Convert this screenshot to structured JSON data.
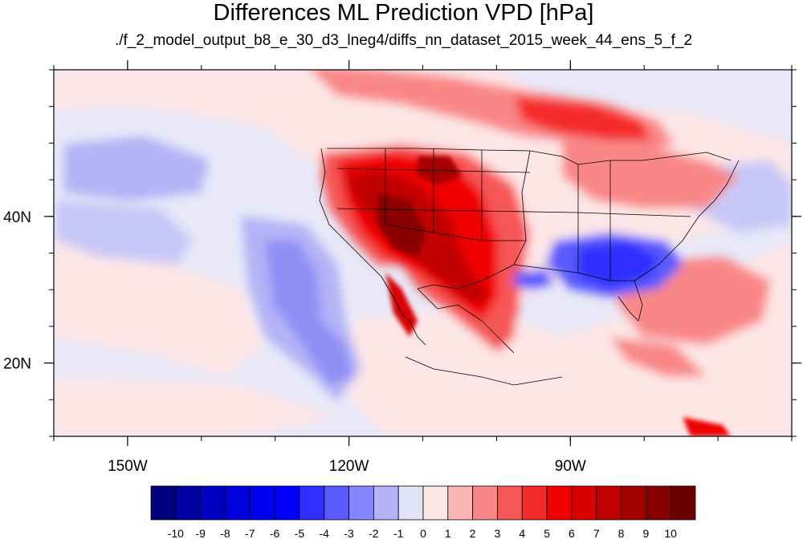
{
  "title": "Differences ML Prediction VPD [hPa]",
  "subtitle": "./f_2_model_output_b8_e_30_d3_lneg4/diffs_nn_dataset_2015_week_44_ens_5_f_2",
  "map": {
    "lon_range": [
      -160,
      -60
    ],
    "lat_range": [
      10,
      60
    ],
    "lon_ticks": [
      {
        "value": -150,
        "label": "150W"
      },
      {
        "value": -120,
        "label": "120W"
      },
      {
        "value": -90,
        "label": "90W"
      }
    ],
    "lat_ticks": [
      {
        "value": 40,
        "label": "40N"
      },
      {
        "value": 20,
        "label": "20N"
      }
    ]
  },
  "colorbar": {
    "labels": [
      "-10",
      "-9",
      "-8",
      "-7",
      "-6",
      "-5",
      "-4",
      "-3",
      "-2",
      "-1",
      "0",
      "1",
      "2",
      "3",
      "4",
      "5",
      "6",
      "7",
      "8",
      "9",
      "10"
    ],
    "colors": [
      "#00007f",
      "#0000a3",
      "#0000c0",
      "#0000db",
      "#0000f0",
      "#0000ff",
      "#2f2fff",
      "#5a5aff",
      "#8585ff",
      "#b3b3f7",
      "#e3e3f7",
      "#fde6e6",
      "#fbb5b5",
      "#f98787",
      "#f75656",
      "#f52a2a",
      "#f00000",
      "#d80000",
      "#c00000",
      "#a50000",
      "#8a0000",
      "#6a0000"
    ]
  }
}
